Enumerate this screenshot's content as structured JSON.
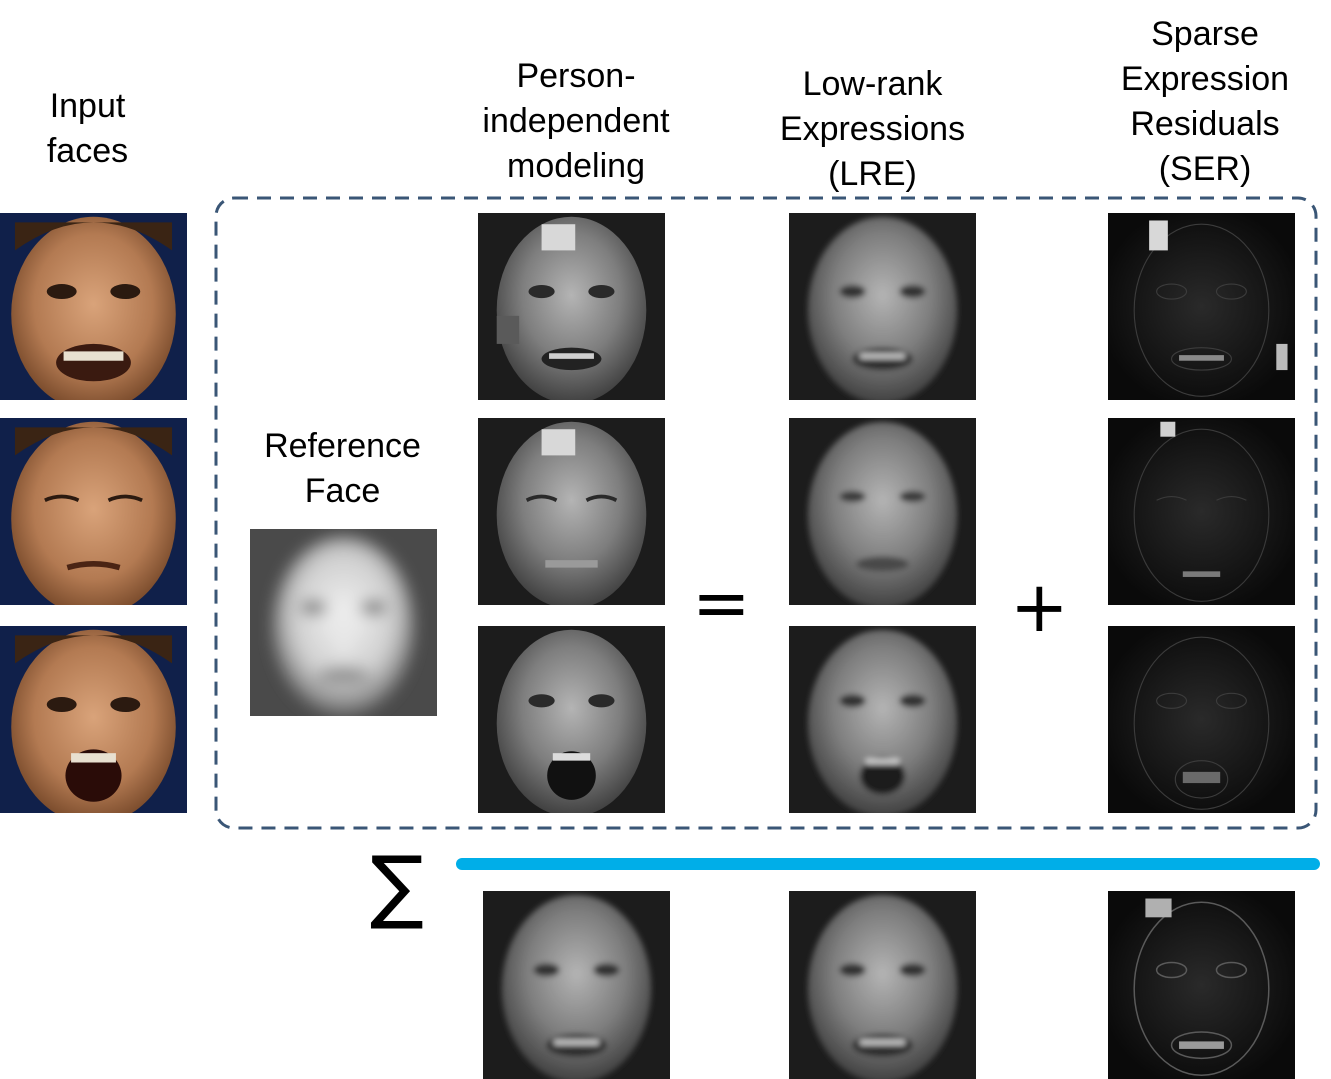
{
  "headers": {
    "input": "Input\nfaces",
    "person_independent": "Person-\nindependent\nmodeling",
    "lre": "Low-rank\nExpressions\n(LRE)",
    "ser": "Sparse\nExpression\nResiduals\n(SER)"
  },
  "reference": {
    "label": "Reference\nFace"
  },
  "operators": {
    "equals": "=",
    "plus": "+",
    "sum": "∑"
  },
  "colors": {
    "dashed_box": "#3a5676",
    "sum_bar": "#00aee8",
    "input_bg": "#10204a",
    "skin": "#b37a52"
  }
}
